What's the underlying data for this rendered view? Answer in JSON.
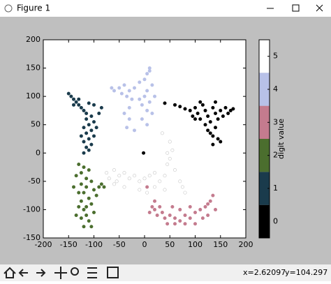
{
  "window": {
    "title": "Figure 1"
  },
  "status": {
    "x": "x=2.62097",
    "y": "y=104.297"
  },
  "chart_data": {
    "type": "scatter",
    "xlim": [
      -200,
      200
    ],
    "ylim": [
      -150,
      200
    ],
    "xticks": [
      -200,
      -150,
      -100,
      -50,
      0,
      50,
      100,
      150,
      200
    ],
    "yticks": [
      -150,
      -100,
      -50,
      0,
      50,
      100,
      150,
      200
    ],
    "colorbar": {
      "label": "digit value"
    },
    "series": [
      {
        "name": "0",
        "color": "#000000",
        "x": [
          60,
          70,
          80,
          90,
          95,
          100,
          105,
          110,
          115,
          120,
          125,
          130,
          135,
          140,
          145,
          150,
          155,
          160,
          165,
          170,
          175,
          120,
          125,
          130,
          135,
          140,
          145,
          150,
          135,
          110,
          100,
          140,
          -2,
          40
        ],
        "values": [
          85,
          82,
          78,
          75,
          65,
          80,
          70,
          60,
          85,
          75,
          65,
          55,
          80,
          70,
          60,
          75,
          65,
          80,
          70,
          75,
          78,
          50,
          40,
          35,
          30,
          45,
          25,
          20,
          15,
          90,
          60,
          90,
          0,
          88
        ]
      },
      {
        "name": "1",
        "color": "#1a3b4c",
        "x": [
          -150,
          -145,
          -140,
          -135,
          -130,
          -125,
          -120,
          -115,
          -110,
          -100,
          -105,
          -115,
          -110,
          -120,
          -105,
          -115,
          -110,
          -120,
          -105,
          -115,
          -110,
          -100,
          -95,
          -125,
          -90,
          -85,
          -130,
          -140,
          -100,
          -120
        ],
        "values": [
          105,
          100,
          95,
          90,
          85,
          80,
          75,
          70,
          88,
          85,
          65,
          60,
          50,
          45,
          40,
          35,
          25,
          20,
          15,
          10,
          5,
          55,
          45,
          30,
          70,
          80,
          95,
          85,
          30,
          0
        ]
      },
      {
        "name": "2",
        "color": "#4b6e2e",
        "x": [
          -130,
          -120,
          -110,
          -125,
          -135,
          -115,
          -105,
          -125,
          -115,
          -100,
          -120,
          -110,
          -125,
          -105,
          -115,
          -120,
          -100,
          -115,
          -125,
          -110,
          -120,
          -105,
          -130,
          -95,
          -90,
          -85,
          -140,
          -135,
          -80,
          -130
        ],
        "values": [
          -20,
          -25,
          -30,
          -35,
          -40,
          -45,
          -50,
          -55,
          -60,
          -65,
          -70,
          -80,
          -85,
          -90,
          -95,
          -100,
          -105,
          -110,
          -115,
          -120,
          -130,
          -130,
          -95,
          -75,
          -60,
          -55,
          -60,
          -110,
          -60,
          -70
        ]
      },
      {
        "name": "3",
        "color": "#c47b8e",
        "x": [
          5,
          15,
          20,
          25,
          35,
          40,
          50,
          60,
          70,
          80,
          90,
          100,
          110,
          120,
          125,
          130,
          135,
          100,
          80,
          60,
          90,
          70,
          55,
          115,
          45,
          30,
          10,
          20,
          125,
          140
        ],
        "values": [
          -60,
          -95,
          -100,
          -110,
          -105,
          -115,
          -110,
          -115,
          -120,
          -110,
          -115,
          -105,
          -100,
          -95,
          -90,
          -85,
          -75,
          -125,
          -125,
          -125,
          -95,
          -100,
          -95,
          -115,
          -125,
          -95,
          -105,
          -85,
          -110,
          -100
        ]
      },
      {
        "name": "4",
        "color": "#b8c1e8",
        "x": [
          -65,
          -60,
          -50,
          -45,
          -40,
          -30,
          -20,
          -10,
          0,
          5,
          10,
          15,
          5,
          0,
          10,
          -5,
          5,
          15,
          -10,
          -25,
          -35,
          -30,
          -40,
          -30,
          -35,
          -20,
          5,
          -5,
          20,
          10
        ],
        "values": [
          115,
          110,
          115,
          105,
          120,
          110,
          115,
          125,
          130,
          140,
          145,
          120,
          110,
          100,
          90,
          85,
          75,
          70,
          95,
          95,
          100,
          80,
          70,
          60,
          45,
          40,
          50,
          60,
          100,
          150
        ]
      },
      {
        "name": "5",
        "color": "#ffffff",
        "x": [
          -75,
          -70,
          -60,
          -55,
          -50,
          -40,
          -30,
          -20,
          -10,
          0,
          10,
          20,
          30,
          40,
          45,
          50,
          45,
          50,
          55,
          60,
          70,
          75,
          80,
          40,
          20,
          5,
          -10,
          -40,
          -60,
          35
        ],
        "values": [
          -35,
          -45,
          -30,
          -50,
          -40,
          -35,
          -45,
          -40,
          -50,
          -45,
          -40,
          -35,
          -50,
          -40,
          -20,
          -10,
          0,
          20,
          5,
          -30,
          -50,
          -60,
          -70,
          -65,
          -60,
          -70,
          -65,
          -60,
          -55,
          35
        ]
      }
    ]
  }
}
